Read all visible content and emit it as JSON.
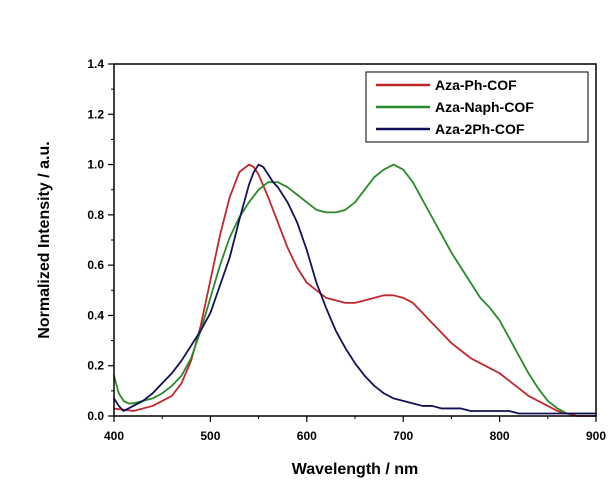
{
  "chart_data": {
    "type": "line",
    "title": "",
    "xlabel": "Wavelength / nm",
    "ylabel": "Normalized Intensity / a.u.",
    "xlim": [
      400,
      900
    ],
    "ylim": [
      0.0,
      1.4
    ],
    "xticks": [
      400,
      500,
      600,
      700,
      800,
      900
    ],
    "yticks": [
      0.0,
      0.2,
      0.4,
      0.6,
      0.8,
      1.0,
      1.2,
      1.4
    ],
    "grid": false,
    "legend_position": "top-right",
    "series": [
      {
        "name": "Aza-Ph-COF",
        "color": "#c0282d",
        "x": [
          400,
          420,
          440,
          460,
          470,
          480,
          490,
          500,
          510,
          520,
          530,
          540,
          545,
          550,
          560,
          570,
          580,
          590,
          600,
          610,
          620,
          630,
          640,
          650,
          660,
          670,
          680,
          690,
          700,
          710,
          720,
          730,
          740,
          750,
          760,
          770,
          780,
          790,
          800,
          810,
          820,
          830,
          840,
          850,
          860,
          870,
          880,
          890,
          900
        ],
        "y": [
          0.03,
          0.02,
          0.04,
          0.08,
          0.13,
          0.22,
          0.36,
          0.54,
          0.72,
          0.87,
          0.97,
          1.0,
          0.99,
          0.96,
          0.87,
          0.77,
          0.67,
          0.59,
          0.53,
          0.5,
          0.47,
          0.46,
          0.45,
          0.45,
          0.46,
          0.47,
          0.48,
          0.48,
          0.47,
          0.45,
          0.41,
          0.37,
          0.33,
          0.29,
          0.26,
          0.23,
          0.21,
          0.19,
          0.17,
          0.14,
          0.11,
          0.08,
          0.06,
          0.04,
          0.02,
          0.01,
          0.0,
          0.0,
          0.0
        ]
      },
      {
        "name": "Aza-Naph-COF",
        "color": "#2a8a2a",
        "x": [
          400,
          405,
          410,
          415,
          420,
          430,
          440,
          450,
          460,
          470,
          480,
          490,
          500,
          510,
          520,
          530,
          540,
          550,
          560,
          570,
          580,
          590,
          600,
          610,
          620,
          630,
          640,
          650,
          660,
          670,
          680,
          690,
          700,
          710,
          720,
          730,
          740,
          750,
          760,
          770,
          780,
          790,
          800,
          810,
          820,
          830,
          840,
          850,
          860,
          870,
          880,
          890,
          900
        ],
        "y": [
          0.16,
          0.09,
          0.06,
          0.05,
          0.05,
          0.06,
          0.07,
          0.09,
          0.12,
          0.16,
          0.23,
          0.34,
          0.47,
          0.6,
          0.71,
          0.79,
          0.85,
          0.9,
          0.93,
          0.93,
          0.91,
          0.88,
          0.85,
          0.82,
          0.81,
          0.81,
          0.82,
          0.85,
          0.9,
          0.95,
          0.98,
          1.0,
          0.98,
          0.93,
          0.86,
          0.79,
          0.72,
          0.65,
          0.59,
          0.53,
          0.47,
          0.43,
          0.38,
          0.31,
          0.24,
          0.17,
          0.11,
          0.06,
          0.03,
          0.01,
          0.01,
          0.01,
          0.01
        ]
      },
      {
        "name": "Aza-2Ph-COF",
        "color": "#12125c",
        "x": [
          400,
          405,
          410,
          415,
          420,
          430,
          440,
          450,
          460,
          470,
          480,
          490,
          500,
          510,
          520,
          530,
          540,
          545,
          550,
          555,
          560,
          565,
          570,
          580,
          590,
          600,
          610,
          620,
          630,
          640,
          650,
          660,
          670,
          680,
          690,
          700,
          710,
          720,
          730,
          740,
          750,
          760,
          770,
          780,
          790,
          800,
          810,
          820,
          830,
          840,
          850,
          860,
          870,
          880,
          890,
          900
        ],
        "y": [
          0.07,
          0.04,
          0.02,
          0.03,
          0.04,
          0.06,
          0.09,
          0.13,
          0.17,
          0.22,
          0.28,
          0.34,
          0.41,
          0.52,
          0.63,
          0.78,
          0.92,
          0.97,
          1.0,
          0.99,
          0.96,
          0.93,
          0.91,
          0.85,
          0.77,
          0.66,
          0.53,
          0.43,
          0.34,
          0.27,
          0.21,
          0.16,
          0.12,
          0.09,
          0.07,
          0.06,
          0.05,
          0.04,
          0.04,
          0.03,
          0.03,
          0.03,
          0.02,
          0.02,
          0.02,
          0.02,
          0.02,
          0.01,
          0.01,
          0.01,
          0.01,
          0.01,
          0.01,
          0.01,
          0.01,
          0.01
        ]
      }
    ]
  }
}
